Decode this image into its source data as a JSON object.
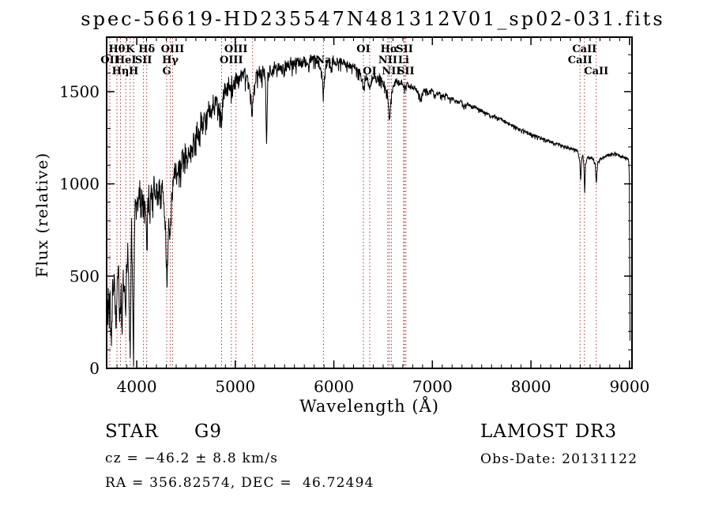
{
  "title": "spec-56619-HD235547N481312V01_sp02-031.fits",
  "axes": {
    "xlabel": "Wavelength (Å)",
    "ylabel": "Flux (relative)"
  },
  "footer": {
    "class_label": "STAR",
    "subclass": "G9",
    "release": "LAMOST DR3",
    "cz": "cz = −46.2 ± 8.8 km/s",
    "obs_date": "Obs-Date: 20131122",
    "radec": "RA = 356.82574, DEC =  46.72494"
  },
  "colors": {
    "background": "#ffffff",
    "spectrum": "#000000",
    "line_marker": "#aa3333",
    "text": "#000000"
  },
  "chart_data": {
    "type": "line",
    "title": "spec-56619-HD235547N481312V01_sp02-031.fits",
    "xlabel": "Wavelength (Å)",
    "ylabel": "Flux (relative)",
    "x_range": [
      3695,
      9025
    ],
    "y_range": [
      0,
      1795
    ],
    "x_ticks": [
      4000,
      5000,
      6000,
      7000,
      8000,
      9000
    ],
    "y_ticks": [
      0,
      500,
      1000,
      1500
    ],
    "x_minor_step": 100,
    "y_minor_step": 100,
    "grid": false,
    "legend": false,
    "lines": [
      {
        "wavelength": 3727.1,
        "label": "OII",
        "row": 2
      },
      {
        "wavelength": 3799.0,
        "label": "Hθ",
        "row": 1
      },
      {
        "wavelength": 3835.4,
        "label": "Hη",
        "row": 3
      },
      {
        "wavelength": 3889.0,
        "label": "HeI",
        "row": 2
      },
      {
        "wavelength": 3933.7,
        "label": "K",
        "row": 1
      },
      {
        "wavelength": 3968.5,
        "label": "H",
        "row": 3
      },
      {
        "wavelength": 4068.6,
        "label": "SII",
        "row": 2
      },
      {
        "wavelength": 4101.7,
        "label": "Hδ",
        "row": 1
      },
      {
        "wavelength": 4304.4,
        "label": "G",
        "row": 3
      },
      {
        "wavelength": 4340.5,
        "label": "Hγ",
        "row": 2
      },
      {
        "wavelength": 4363.2,
        "label": "OIII",
        "row": 1
      },
      {
        "wavelength": 4861.3,
        "label": "",
        "row": 3
      },
      {
        "wavelength": 4959.5,
        "label": "OIII",
        "row": 2
      },
      {
        "wavelength": 5006.8,
        "label": "OIII",
        "row": 1
      },
      {
        "wavelength": 5175.3,
        "label": "",
        "row": 3
      },
      {
        "wavelength": 5894.0,
        "label": "Na",
        "row": 2
      },
      {
        "wavelength": 6300.2,
        "label": "OI",
        "row": 1
      },
      {
        "wavelength": 6363.8,
        "label": "OI",
        "row": 3
      },
      {
        "wavelength": 6547.9,
        "label": "NII",
        "row": 2
      },
      {
        "wavelength": 6562.8,
        "label": "Hα",
        "row": 1
      },
      {
        "wavelength": 6583.4,
        "label": "NII",
        "row": 3
      },
      {
        "wavelength": 6707.8,
        "label": "Li",
        "row": 2
      },
      {
        "wavelength": 6716.4,
        "label": "SII",
        "row": 1
      },
      {
        "wavelength": 6730.8,
        "label": "SII",
        "row": 3
      },
      {
        "wavelength": 8498.0,
        "label": "CaII",
        "row": 2
      },
      {
        "wavelength": 8542.1,
        "label": "CaII",
        "row": 1
      },
      {
        "wavelength": 8662.1,
        "label": "CaII",
        "row": 3
      }
    ],
    "spectrum": [
      [
        3700,
        380
      ],
      [
        3706,
        210
      ],
      [
        3712,
        400
      ],
      [
        3718,
        300
      ],
      [
        3724,
        470
      ],
      [
        3730,
        330
      ],
      [
        3737,
        250
      ],
      [
        3744,
        110
      ],
      [
        3750,
        300
      ],
      [
        3757,
        520
      ],
      [
        3764,
        340
      ],
      [
        3771,
        460
      ],
      [
        3778,
        380
      ],
      [
        3785,
        300
      ],
      [
        3792,
        240
      ],
      [
        3799,
        320
      ],
      [
        3806,
        450
      ],
      [
        3814,
        540
      ],
      [
        3822,
        380
      ],
      [
        3830,
        280
      ],
      [
        3836,
        230
      ],
      [
        3843,
        400
      ],
      [
        3850,
        170
      ],
      [
        3858,
        360
      ],
      [
        3866,
        500
      ],
      [
        3874,
        420
      ],
      [
        3882,
        330
      ],
      [
        3889,
        290
      ],
      [
        3896,
        480
      ],
      [
        3904,
        600
      ],
      [
        3912,
        650
      ],
      [
        3920,
        430
      ],
      [
        3928,
        220
      ],
      [
        3934,
        100
      ],
      [
        3941,
        420
      ],
      [
        3948,
        760
      ],
      [
        3955,
        560
      ],
      [
        3962,
        230
      ],
      [
        3968,
        120
      ],
      [
        3974,
        480
      ],
      [
        3981,
        800
      ],
      [
        3988,
        920
      ],
      [
        3996,
        840
      ],
      [
        4004,
        960
      ],
      [
        4014,
        880
      ],
      [
        4024,
        1000
      ],
      [
        4034,
        920
      ],
      [
        4044,
        870
      ],
      [
        4054,
        940
      ],
      [
        4064,
        840
      ],
      [
        4074,
        900
      ],
      [
        4084,
        960
      ],
      [
        4094,
        780
      ],
      [
        4102,
        650
      ],
      [
        4110,
        820
      ],
      [
        4120,
        940
      ],
      [
        4132,
        880
      ],
      [
        4144,
        980
      ],
      [
        4158,
        900
      ],
      [
        4172,
        1000
      ],
      [
        4186,
        930
      ],
      [
        4200,
        990
      ],
      [
        4214,
        900
      ],
      [
        4228,
        970
      ],
      [
        4244,
        910
      ],
      [
        4260,
        980
      ],
      [
        4275,
        900
      ],
      [
        4290,
        750
      ],
      [
        4300,
        560
      ],
      [
        4308,
        480
      ],
      [
        4318,
        680
      ],
      [
        4328,
        800
      ],
      [
        4341,
        700
      ],
      [
        4352,
        870
      ],
      [
        4364,
        960
      ],
      [
        4378,
        1030
      ],
      [
        4392,
        1080
      ],
      [
        4408,
        1020
      ],
      [
        4424,
        1110
      ],
      [
        4440,
        1060
      ],
      [
        4458,
        1150
      ],
      [
        4476,
        1100
      ],
      [
        4494,
        1180
      ],
      [
        4512,
        1130
      ],
      [
        4530,
        1210
      ],
      [
        4550,
        1160
      ],
      [
        4570,
        1250
      ],
      [
        4590,
        1200
      ],
      [
        4610,
        1290
      ],
      [
        4630,
        1240
      ],
      [
        4650,
        1340
      ],
      [
        4670,
        1290
      ],
      [
        4690,
        1380
      ],
      [
        4710,
        1330
      ],
      [
        4730,
        1420
      ],
      [
        4750,
        1370
      ],
      [
        4770,
        1440
      ],
      [
        4790,
        1400
      ],
      [
        4810,
        1460
      ],
      [
        4830,
        1420
      ],
      [
        4848,
        1390
      ],
      [
        4861,
        1320
      ],
      [
        4876,
        1450
      ],
      [
        4892,
        1510
      ],
      [
        4910,
        1470
      ],
      [
        4930,
        1540
      ],
      [
        4950,
        1500
      ],
      [
        4970,
        1560
      ],
      [
        4990,
        1530
      ],
      [
        5010,
        1570
      ],
      [
        5030,
        1545
      ],
      [
        5050,
        1590
      ],
      [
        5070,
        1555
      ],
      [
        5090,
        1600
      ],
      [
        5110,
        1565
      ],
      [
        5130,
        1530
      ],
      [
        5152,
        1470
      ],
      [
        5170,
        1390
      ],
      [
        5186,
        1460
      ],
      [
        5202,
        1540
      ],
      [
        5220,
        1585
      ],
      [
        5240,
        1605
      ],
      [
        5262,
        1575
      ],
      [
        5284,
        1610
      ],
      [
        5306,
        1580
      ],
      [
        5317,
        1200
      ],
      [
        5330,
        1570
      ],
      [
        5350,
        1620
      ],
      [
        5372,
        1595
      ],
      [
        5394,
        1630
      ],
      [
        5420,
        1605
      ],
      [
        5446,
        1640
      ],
      [
        5472,
        1615
      ],
      [
        5500,
        1650
      ],
      [
        5530,
        1628
      ],
      [
        5560,
        1655
      ],
      [
        5592,
        1638
      ],
      [
        5626,
        1662
      ],
      [
        5660,
        1645
      ],
      [
        5695,
        1668
      ],
      [
        5730,
        1652
      ],
      [
        5766,
        1672
      ],
      [
        5802,
        1678
      ],
      [
        5838,
        1660
      ],
      [
        5868,
        1630
      ],
      [
        5893,
        1495
      ],
      [
        5916,
        1625
      ],
      [
        5940,
        1658
      ],
      [
        5966,
        1645
      ],
      [
        5994,
        1668
      ],
      [
        6024,
        1652
      ],
      [
        6056,
        1663
      ],
      [
        6090,
        1645
      ],
      [
        6124,
        1655
      ],
      [
        6160,
        1638
      ],
      [
        6196,
        1645
      ],
      [
        6232,
        1620
      ],
      [
        6266,
        1595
      ],
      [
        6300,
        1525
      ],
      [
        6322,
        1580
      ],
      [
        6344,
        1555
      ],
      [
        6364,
        1520
      ],
      [
        6386,
        1570
      ],
      [
        6410,
        1582
      ],
      [
        6436,
        1560
      ],
      [
        6462,
        1575
      ],
      [
        6490,
        1550
      ],
      [
        6518,
        1530
      ],
      [
        6542,
        1495
      ],
      [
        6563,
        1330
      ],
      [
        6586,
        1490
      ],
      [
        6610,
        1540
      ],
      [
        6636,
        1560
      ],
      [
        6662,
        1538
      ],
      [
        6690,
        1552
      ],
      [
        6716,
        1522
      ],
      [
        6742,
        1540
      ],
      [
        6770,
        1522
      ],
      [
        6800,
        1532
      ],
      [
        6830,
        1512
      ],
      [
        6862,
        1482
      ],
      [
        6884,
        1462
      ],
      [
        6908,
        1498
      ],
      [
        6936,
        1508
      ],
      [
        6966,
        1492
      ],
      [
        6998,
        1502
      ],
      [
        7032,
        1482
      ],
      [
        7066,
        1492
      ],
      [
        7100,
        1472
      ],
      [
        7136,
        1480
      ],
      [
        7172,
        1455
      ],
      [
        7210,
        1462
      ],
      [
        7248,
        1440
      ],
      [
        7286,
        1448
      ],
      [
        7324,
        1425
      ],
      [
        7362,
        1432
      ],
      [
        7400,
        1412
      ],
      [
        7440,
        1418
      ],
      [
        7480,
        1398
      ],
      [
        7520,
        1390
      ],
      [
        7560,
        1378
      ],
      [
        7600,
        1362
      ],
      [
        7640,
        1368
      ],
      [
        7680,
        1348
      ],
      [
        7720,
        1342
      ],
      [
        7760,
        1328
      ],
      [
        7800,
        1318
      ],
      [
        7840,
        1308
      ],
      [
        7880,
        1297
      ],
      [
        7920,
        1288
      ],
      [
        7960,
        1278
      ],
      [
        8000,
        1268
      ],
      [
        8040,
        1258
      ],
      [
        8080,
        1250
      ],
      [
        8120,
        1243
      ],
      [
        8160,
        1236
      ],
      [
        8200,
        1228
      ],
      [
        8240,
        1221
      ],
      [
        8280,
        1213
      ],
      [
        8320,
        1206
      ],
      [
        8360,
        1198
      ],
      [
        8400,
        1192
      ],
      [
        8440,
        1186
      ],
      [
        8475,
        1178
      ],
      [
        8496,
        1120
      ],
      [
        8504,
        1015
      ],
      [
        8512,
        1115
      ],
      [
        8524,
        1160
      ],
      [
        8536,
        1105
      ],
      [
        8545,
        955
      ],
      [
        8554,
        1100
      ],
      [
        8568,
        1135
      ],
      [
        8584,
        1142
      ],
      [
        8600,
        1136
      ],
      [
        8618,
        1142
      ],
      [
        8636,
        1130
      ],
      [
        8652,
        1108
      ],
      [
        8663,
        1000
      ],
      [
        8676,
        1112
      ],
      [
        8694,
        1128
      ],
      [
        8714,
        1136
      ],
      [
        8736,
        1146
      ],
      [
        8760,
        1152
      ],
      [
        8786,
        1158
      ],
      [
        8812,
        1163
      ],
      [
        8840,
        1166
      ],
      [
        8868,
        1160
      ],
      [
        8896,
        1152
      ],
      [
        8924,
        1146
      ],
      [
        8950,
        1142
      ],
      [
        8972,
        1138
      ],
      [
        8990,
        1130
      ],
      [
        8998,
        1050
      ],
      [
        9002,
        520
      ],
      [
        9005,
        150
      ]
    ],
    "noise_profile": [
      [
        3700,
        105
      ],
      [
        3990,
        80
      ],
      [
        4380,
        62
      ],
      [
        4900,
        52
      ],
      [
        5400,
        38
      ],
      [
        5900,
        30
      ],
      [
        6400,
        26
      ],
      [
        6900,
        16
      ],
      [
        7500,
        11
      ],
      [
        8200,
        9
      ],
      [
        8990,
        8
      ],
      [
        9005,
        0
      ]
    ]
  }
}
